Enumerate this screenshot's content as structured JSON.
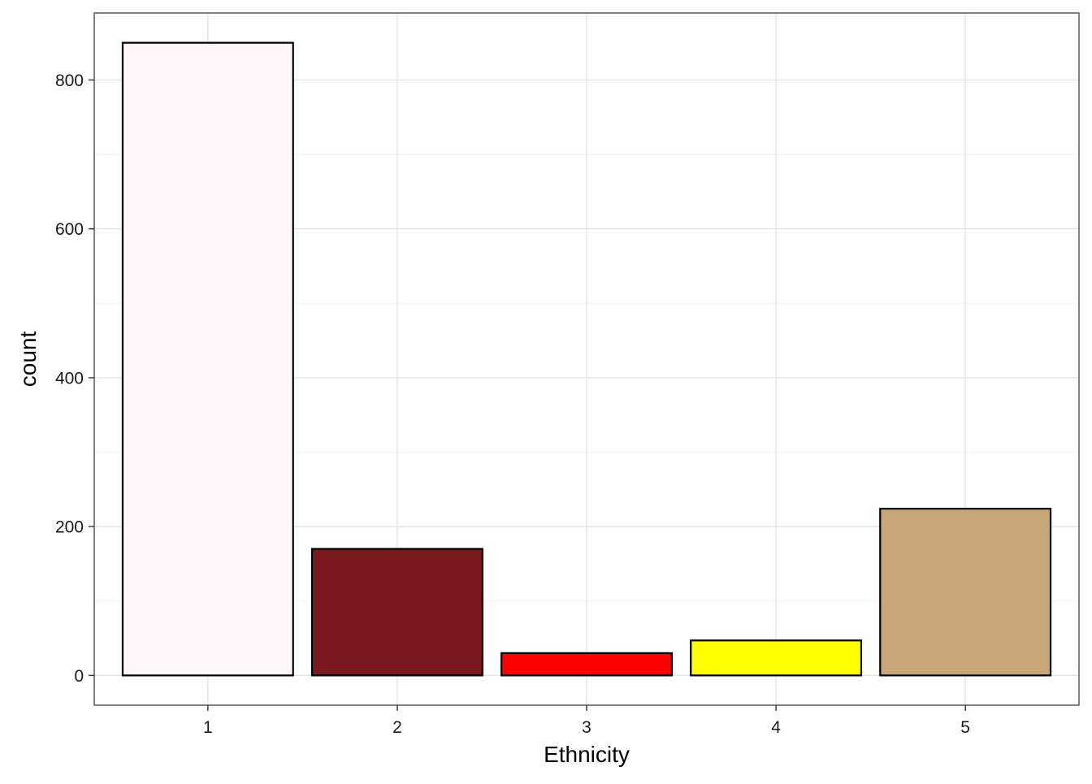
{
  "chart_data": {
    "type": "bar",
    "title": "",
    "xlabel": "Ethnicity",
    "ylabel": "count",
    "categories": [
      "1",
      "2",
      "3",
      "4",
      "5"
    ],
    "values": [
      850,
      170,
      30,
      47,
      224
    ],
    "bar_colors": [
      "#fff7f7",
      "#7a1a1f",
      "#ff0000",
      "#ffff00",
      "#c8a678"
    ],
    "bar_outline_color": "#000000",
    "ylim": [
      -40,
      890
    ],
    "yticks": [
      0,
      200,
      400,
      600,
      800
    ],
    "yminor": [
      100,
      300,
      500,
      700
    ],
    "ytick_labels": [
      "0",
      "200",
      "400",
      "600",
      "800"
    ],
    "grid": true,
    "legend": "none",
    "theme": "bw"
  }
}
